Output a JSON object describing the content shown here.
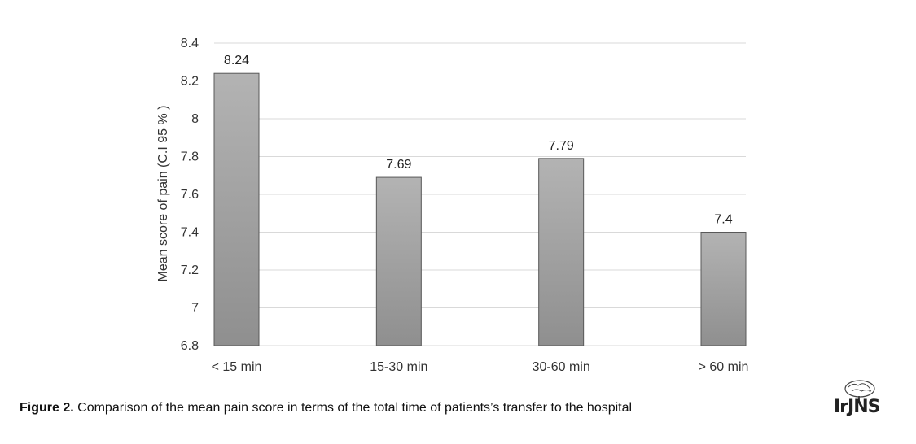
{
  "chart_data": {
    "type": "bar",
    "categories": [
      "< 15 min",
      "15-30 min",
      "30-60 min",
      "> 60 min"
    ],
    "values": [
      8.24,
      7.69,
      7.79,
      7.4
    ],
    "data_labels": [
      "8.24",
      "7.69",
      "7.79",
      "7.4"
    ],
    "ylabel": "Mean score of pain (C.I 95 %  )",
    "ylim": [
      6.8,
      8.4
    ],
    "yticks": [
      6.8,
      7,
      7.2,
      7.4,
      7.6,
      7.8,
      8,
      8.2,
      8.4
    ],
    "ytick_labels": [
      "6.8",
      "7",
      "7.2",
      "7.4",
      "7.6",
      "7.8",
      "8",
      "8.2",
      "8.4"
    ],
    "grid": true,
    "legend": "none",
    "bar_color_top": "#b3b3b3",
    "bar_color_bottom": "#8f8f8f",
    "bar_edge_color": "#595959",
    "grid_color": "#d9d9d9"
  },
  "caption": {
    "label": "Figure 2.",
    "text": " Comparison of the mean pain score in terms of the total time of patients’s transfer to the hospital"
  },
  "logo": {
    "text": "IrJNS"
  }
}
